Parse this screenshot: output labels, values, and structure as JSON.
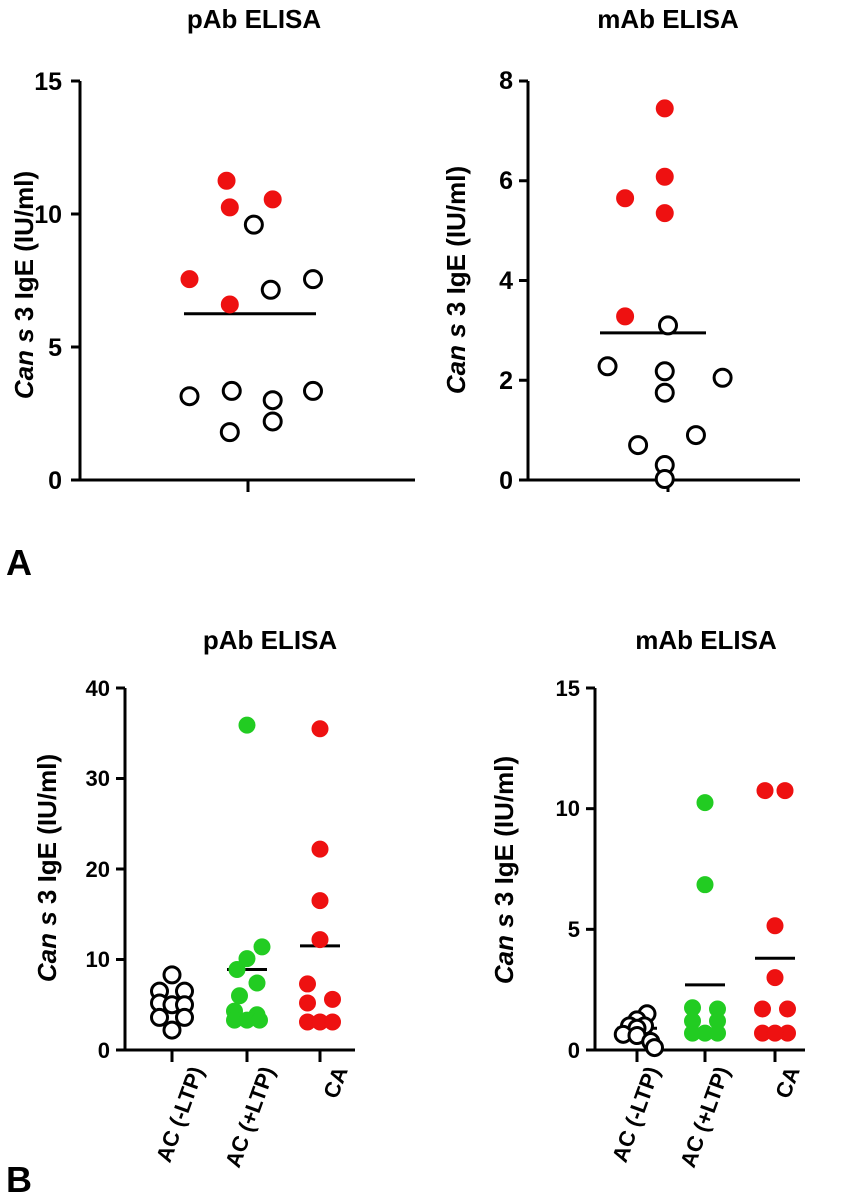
{
  "panels": [
    {
      "label": "A"
    },
    {
      "label": "B"
    }
  ],
  "colors": {
    "red": "#ee1111",
    "green": "#22cc22",
    "open": "#000000"
  },
  "chart_data": [
    {
      "type": "scatter",
      "title": "pAb ELISA",
      "ylabel_italic": "Can s",
      "ylabel_rest": " 3 IgE (IU/ml)",
      "ylim": [
        0,
        15
      ],
      "yticks": [
        0,
        5,
        10,
        15
      ],
      "categories": [
        ""
      ],
      "mean": 6.25,
      "points": [
        {
          "x": 0,
          "dx": -0.33,
          "y": 11.25,
          "group": "red"
        },
        {
          "x": 0,
          "dx": -0.28,
          "y": 10.25,
          "group": "red"
        },
        {
          "x": 0,
          "dx": 0.38,
          "y": 10.55,
          "group": "red"
        },
        {
          "x": 0,
          "dx": 0.09,
          "y": 9.6,
          "group": "open"
        },
        {
          "x": 0,
          "dx": -0.9,
          "y": 7.55,
          "group": "red"
        },
        {
          "x": 0,
          "dx": 1.0,
          "y": 7.55,
          "group": "open"
        },
        {
          "x": 0,
          "dx": 0.35,
          "y": 7.15,
          "group": "open"
        },
        {
          "x": 0,
          "dx": -0.28,
          "y": 6.6,
          "group": "red"
        },
        {
          "x": 0,
          "dx": -0.9,
          "y": 3.15,
          "group": "open"
        },
        {
          "x": 0,
          "dx": -0.25,
          "y": 3.35,
          "group": "open"
        },
        {
          "x": 0,
          "dx": 0.38,
          "y": 3.0,
          "group": "open"
        },
        {
          "x": 0,
          "dx": 1.0,
          "y": 3.35,
          "group": "open"
        },
        {
          "x": 0,
          "dx": -0.28,
          "y": 1.8,
          "group": "open"
        },
        {
          "x": 0,
          "dx": 0.38,
          "y": 2.2,
          "group": "open"
        }
      ]
    },
    {
      "type": "scatter",
      "title": "mAb ELISA",
      "ylabel_italic": "Can s",
      "ylabel_rest": " 3 IgE (IU/ml)",
      "ylim": [
        0,
        8
      ],
      "yticks": [
        0,
        2,
        4,
        6,
        8
      ],
      "categories": [
        ""
      ],
      "mean": 2.95,
      "points": [
        {
          "x": 0,
          "dx": -0.05,
          "y": 7.45,
          "group": "red"
        },
        {
          "x": 0,
          "dx": -0.05,
          "y": 6.08,
          "group": "red"
        },
        {
          "x": 0,
          "dx": -0.66,
          "y": 5.65,
          "group": "red"
        },
        {
          "x": 0,
          "dx": -0.05,
          "y": 5.35,
          "group": "red"
        },
        {
          "x": 0,
          "dx": -0.66,
          "y": 3.28,
          "group": "red"
        },
        {
          "x": 0,
          "dx": 0.0,
          "y": 3.1,
          "group": "open"
        },
        {
          "x": 0,
          "dx": -0.93,
          "y": 2.28,
          "group": "open"
        },
        {
          "x": 0,
          "dx": -0.05,
          "y": 2.18,
          "group": "open"
        },
        {
          "x": 0,
          "dx": 0.84,
          "y": 2.05,
          "group": "open"
        },
        {
          "x": 0,
          "dx": -0.05,
          "y": 1.75,
          "group": "open"
        },
        {
          "x": 0,
          "dx": 0.43,
          "y": 0.9,
          "group": "open"
        },
        {
          "x": 0,
          "dx": -0.46,
          "y": 0.7,
          "group": "open"
        },
        {
          "x": 0,
          "dx": -0.05,
          "y": 0.3,
          "group": "open"
        },
        {
          "x": 0,
          "dx": -0.05,
          "y": 0.02,
          "group": "open"
        }
      ]
    },
    {
      "type": "scatter",
      "title": "pAb ELISA",
      "ylabel_italic": "Can s",
      "ylabel_rest": " 3 IgE (IU/ml)",
      "ylim": [
        0,
        40
      ],
      "yticks": [
        0,
        10,
        20,
        30,
        40
      ],
      "categories": [
        "AC (-LTP)",
        "AC (+LTP)",
        "CA"
      ],
      "means": [
        5.0,
        8.9,
        11.5
      ],
      "points": [
        {
          "x": 0,
          "dx": 0.0,
          "y": 8.3,
          "group": "open"
        },
        {
          "x": 0,
          "dx": -0.5,
          "y": 6.5,
          "group": "open"
        },
        {
          "x": 0,
          "dx": 0.5,
          "y": 6.5,
          "group": "open"
        },
        {
          "x": 0,
          "dx": -0.5,
          "y": 5.2,
          "group": "open"
        },
        {
          "x": 0,
          "dx": 0.0,
          "y": 5.0,
          "group": "open"
        },
        {
          "x": 0,
          "dx": 0.5,
          "y": 5.0,
          "group": "open"
        },
        {
          "x": 0,
          "dx": -0.5,
          "y": 3.6,
          "group": "open"
        },
        {
          "x": 0,
          "dx": 0.5,
          "y": 3.6,
          "group": "open"
        },
        {
          "x": 0,
          "dx": 0.0,
          "y": 2.2,
          "group": "open"
        },
        {
          "x": 1,
          "dx": 0.0,
          "y": 35.9,
          "group": "green"
        },
        {
          "x": 1,
          "dx": 0.6,
          "y": 11.4,
          "group": "green"
        },
        {
          "x": 1,
          "dx": 0.0,
          "y": 10.1,
          "group": "green"
        },
        {
          "x": 1,
          "dx": -0.4,
          "y": 8.9,
          "group": "green"
        },
        {
          "x": 1,
          "dx": 0.4,
          "y": 7.4,
          "group": "green"
        },
        {
          "x": 1,
          "dx": -0.3,
          "y": 6.0,
          "group": "green"
        },
        {
          "x": 1,
          "dx": -0.5,
          "y": 4.3,
          "group": "green"
        },
        {
          "x": 1,
          "dx": 0.4,
          "y": 3.9,
          "group": "green"
        },
        {
          "x": 1,
          "dx": -0.5,
          "y": 3.3,
          "group": "green"
        },
        {
          "x": 1,
          "dx": 0.0,
          "y": 3.3,
          "group": "green"
        },
        {
          "x": 1,
          "dx": 0.5,
          "y": 3.3,
          "group": "green"
        },
        {
          "x": 2,
          "dx": 0.0,
          "y": 35.5,
          "group": "red"
        },
        {
          "x": 2,
          "dx": 0.0,
          "y": 22.2,
          "group": "red"
        },
        {
          "x": 2,
          "dx": 0.0,
          "y": 16.5,
          "group": "red"
        },
        {
          "x": 2,
          "dx": 0.0,
          "y": 12.2,
          "group": "red"
        },
        {
          "x": 2,
          "dx": -0.5,
          "y": 7.3,
          "group": "red"
        },
        {
          "x": 2,
          "dx": 0.5,
          "y": 5.6,
          "group": "red"
        },
        {
          "x": 2,
          "dx": -0.5,
          "y": 5.2,
          "group": "red"
        },
        {
          "x": 2,
          "dx": -0.5,
          "y": 3.1,
          "group": "red"
        },
        {
          "x": 2,
          "dx": 0.0,
          "y": 3.1,
          "group": "red"
        },
        {
          "x": 2,
          "dx": 0.5,
          "y": 3.1,
          "group": "red"
        }
      ]
    },
    {
      "type": "scatter",
      "title": "mAb ELISA",
      "ylabel_italic": "Can s",
      "ylabel_rest": " 3 IgE (IU/ml)",
      "ylim": [
        0,
        15
      ],
      "yticks": [
        0,
        5,
        10,
        15
      ],
      "categories": [
        "AC (-LTP)",
        "AC (+LTP)",
        "CA"
      ],
      "means": [
        0.9,
        2.7,
        3.8
      ],
      "points": [
        {
          "x": 0,
          "dx": 0.4,
          "y": 1.5,
          "group": "open"
        },
        {
          "x": 0,
          "dx": 0.0,
          "y": 1.25,
          "group": "open"
        },
        {
          "x": 0,
          "dx": -0.3,
          "y": 1.0,
          "group": "open"
        },
        {
          "x": 0,
          "dx": 0.3,
          "y": 1.0,
          "group": "open"
        },
        {
          "x": 0,
          "dx": 0.0,
          "y": 0.9,
          "group": "open"
        },
        {
          "x": 0,
          "dx": -0.55,
          "y": 0.65,
          "group": "open"
        },
        {
          "x": 0,
          "dx": 0.0,
          "y": 0.6,
          "group": "open"
        },
        {
          "x": 0,
          "dx": 0.55,
          "y": 0.35,
          "group": "open"
        },
        {
          "x": 0,
          "dx": 0.7,
          "y": 0.1,
          "group": "open"
        },
        {
          "x": 1,
          "dx": 0.0,
          "y": 10.25,
          "group": "green"
        },
        {
          "x": 1,
          "dx": 0.0,
          "y": 6.85,
          "group": "green"
        },
        {
          "x": 1,
          "dx": -0.5,
          "y": 1.75,
          "group": "green"
        },
        {
          "x": 1,
          "dx": 0.5,
          "y": 1.7,
          "group": "green"
        },
        {
          "x": 1,
          "dx": -0.5,
          "y": 1.2,
          "group": "green"
        },
        {
          "x": 1,
          "dx": 0.5,
          "y": 1.2,
          "group": "green"
        },
        {
          "x": 1,
          "dx": -0.5,
          "y": 0.7,
          "group": "green"
        },
        {
          "x": 1,
          "dx": 0.0,
          "y": 0.7,
          "group": "green"
        },
        {
          "x": 1,
          "dx": 0.5,
          "y": 0.7,
          "group": "green"
        },
        {
          "x": 2,
          "dx": -0.4,
          "y": 10.75,
          "group": "red"
        },
        {
          "x": 2,
          "dx": 0.4,
          "y": 10.75,
          "group": "red"
        },
        {
          "x": 2,
          "dx": 0.0,
          "y": 5.15,
          "group": "red"
        },
        {
          "x": 2,
          "dx": 0.0,
          "y": 3.0,
          "group": "red"
        },
        {
          "x": 2,
          "dx": -0.5,
          "y": 1.7,
          "group": "red"
        },
        {
          "x": 2,
          "dx": 0.5,
          "y": 1.7,
          "group": "red"
        },
        {
          "x": 2,
          "dx": -0.5,
          "y": 0.7,
          "group": "red"
        },
        {
          "x": 2,
          "dx": 0.5,
          "y": 0.7,
          "group": "red"
        },
        {
          "x": 2,
          "dx": 0.0,
          "y": 0.7,
          "group": "red"
        }
      ]
    }
  ]
}
